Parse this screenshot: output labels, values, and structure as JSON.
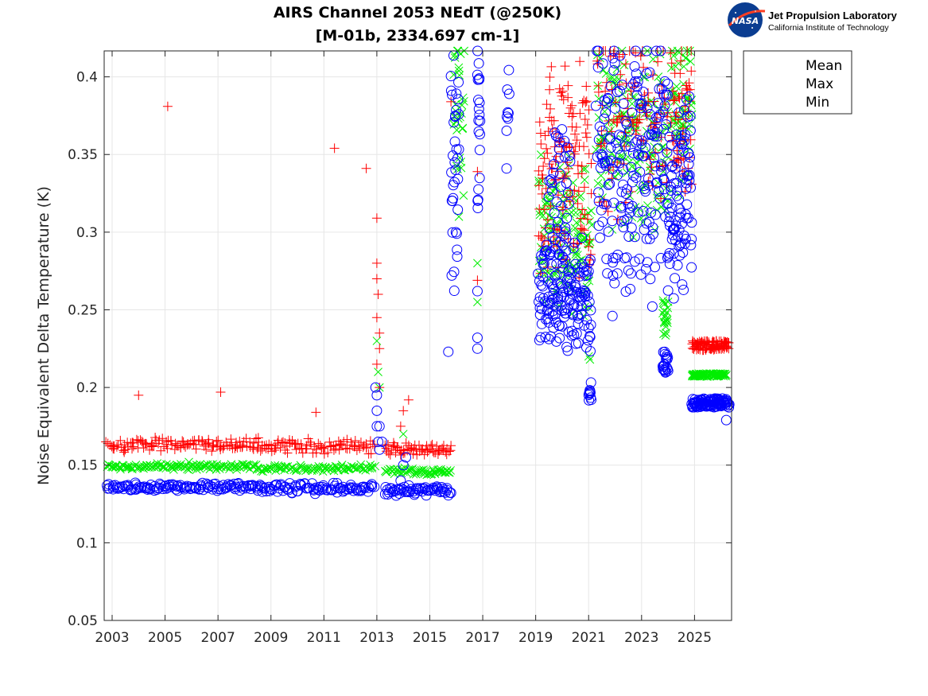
{
  "chart_data": {
    "type": "scatter",
    "title_line1": "AIRS Channel 2053 NEdT (@250K)",
    "title_line2": "[M-01b, 2334.697 cm-1]",
    "ylabel": "Noise Equivalent Delta Temperature (K)",
    "xlabel": "",
    "xlim": [
      2002.7,
      2026.4
    ],
    "ylim": [
      0.05,
      0.4167
    ],
    "xticks": [
      2003,
      2005,
      2007,
      2009,
      2011,
      2013,
      2015,
      2017,
      2019,
      2021,
      2023,
      2025
    ],
    "yticks": [
      0.05,
      0.1,
      0.15,
      0.2,
      0.25,
      0.3,
      0.35,
      0.4
    ],
    "ytick_labels": [
      "0.05",
      "0.1",
      "0.15",
      "0.2",
      "0.25",
      "0.3",
      "0.35",
      "0.4"
    ],
    "grid": true,
    "legend_position": "outside-top-right",
    "series": [
      {
        "name": "Mean",
        "marker": "x",
        "color": "#00ee00",
        "segments": [
          {
            "x": [
              2002.8,
              2008.5
            ],
            "y": [
              0.148,
              0.15
            ],
            "n": 120,
            "spread": 0.0015
          },
          {
            "x": [
              2008.5,
              2012.9
            ],
            "y": [
              0.149,
              0.147
            ],
            "n": 90,
            "spread": 0.0015
          },
          {
            "x": [
              2013.3,
              2015.8
            ],
            "y": [
              0.147,
              0.145
            ],
            "n": 60,
            "spread": 0.0015
          },
          {
            "x": [
              2015.9,
              2016.3
            ],
            "y": [
              0.35,
              0.41
            ],
            "n": 30,
            "spread": 0.03
          },
          {
            "x": [
              2019.1,
              2021.1
            ],
            "y": [
              0.27,
              0.33
            ],
            "n": 130,
            "spread": 0.03
          },
          {
            "x": [
              2021.3,
              2024.0
            ],
            "y": [
              0.33,
              0.39
            ],
            "n": 150,
            "spread": 0.04
          },
          {
            "x": [
              2023.8,
              2024.0
            ],
            "y": [
              0.24,
              0.25
            ],
            "n": 20,
            "spread": 0.01
          },
          {
            "x": [
              2024.1,
              2024.9
            ],
            "y": [
              0.35,
              0.41
            ],
            "n": 60,
            "spread": 0.03
          },
          {
            "x": [
              2024.9,
              2026.2
            ],
            "y": [
              0.208,
              0.208
            ],
            "n": 80,
            "spread": 0.001
          }
        ],
        "points": [
          [
            2013.0,
            0.23
          ],
          [
            2013.05,
            0.21
          ],
          [
            2013.1,
            0.2
          ],
          [
            2014.0,
            0.17
          ],
          [
            2016.8,
            0.28
          ],
          [
            2016.8,
            0.255
          ],
          [
            2016.1,
            0.31
          ],
          [
            2005.9,
            0.152
          ],
          [
            2021.0,
            0.22
          ],
          [
            2021.05,
            0.218
          ]
        ]
      },
      {
        "name": "Max",
        "marker": "+",
        "color": "#ff0000",
        "segments": [
          {
            "x": [
              2002.8,
              2008.5
            ],
            "y": [
              0.161,
              0.165
            ],
            "n": 120,
            "spread": 0.003
          },
          {
            "x": [
              2008.5,
              2012.9
            ],
            "y": [
              0.165,
              0.16
            ],
            "n": 90,
            "spread": 0.003
          },
          {
            "x": [
              2013.3,
              2015.8
            ],
            "y": [
              0.162,
              0.158
            ],
            "n": 60,
            "spread": 0.003
          },
          {
            "x": [
              2019.1,
              2021.1
            ],
            "y": [
              0.3,
              0.38
            ],
            "n": 140,
            "spread": 0.04
          },
          {
            "x": [
              2021.3,
              2024.0
            ],
            "y": [
              0.34,
              0.41
            ],
            "n": 110,
            "spread": 0.04
          },
          {
            "x": [
              2024.1,
              2024.9
            ],
            "y": [
              0.35,
              0.41
            ],
            "n": 50,
            "spread": 0.03
          },
          {
            "x": [
              2024.9,
              2026.3
            ],
            "y": [
              0.227,
              0.227
            ],
            "n": 90,
            "spread": 0.003
          }
        ],
        "points": [
          [
            2005.1,
            0.381
          ],
          [
            2004.0,
            0.195
          ],
          [
            2007.1,
            0.197
          ],
          [
            2010.7,
            0.184
          ],
          [
            2011.4,
            0.354
          ],
          [
            2012.6,
            0.341
          ],
          [
            2013.0,
            0.309
          ],
          [
            2013.0,
            0.28
          ],
          [
            2013.0,
            0.27
          ],
          [
            2013.05,
            0.26
          ],
          [
            2013.0,
            0.245
          ],
          [
            2013.1,
            0.235
          ],
          [
            2013.1,
            0.225
          ],
          [
            2013.0,
            0.215
          ],
          [
            2013.1,
            0.2
          ],
          [
            2014.2,
            0.192
          ],
          [
            2014.0,
            0.185
          ],
          [
            2013.9,
            0.175
          ],
          [
            2016.8,
            0.339
          ],
          [
            2016.8,
            0.269
          ],
          [
            2015.8,
            0.384
          ]
        ]
      },
      {
        "name": "Min",
        "marker": "o",
        "color": "#0000ff",
        "segments": [
          {
            "x": [
              2002.8,
              2008.5
            ],
            "y": [
              0.135,
              0.137
            ],
            "n": 120,
            "spread": 0.002
          },
          {
            "x": [
              2008.5,
              2012.9
            ],
            "y": [
              0.137,
              0.133
            ],
            "n": 90,
            "spread": 0.002
          },
          {
            "x": [
              2013.3,
              2015.8
            ],
            "y": [
              0.135,
              0.132
            ],
            "n": 60,
            "spread": 0.002
          },
          {
            "x": [
              2015.8,
              2016.1
            ],
            "y": [
              0.28,
              0.41
            ],
            "n": 35,
            "spread": 0.04
          },
          {
            "x": [
              2016.8,
              2016.9
            ],
            "y": [
              0.33,
              0.41
            ],
            "n": 20,
            "spread": 0.03
          },
          {
            "x": [
              2017.9,
              2018.0
            ],
            "y": [
              0.36,
              0.4
            ],
            "n": 8,
            "spread": 0.02
          },
          {
            "x": [
              2019.1,
              2021.1
            ],
            "y": [
              0.24,
              0.28
            ],
            "n": 160,
            "spread": 0.025
          },
          {
            "x": [
              2019.5,
              2020.3
            ],
            "y": [
              0.3,
              0.34
            ],
            "n": 40,
            "spread": 0.03
          },
          {
            "x": [
              2021.0,
              2021.1
            ],
            "y": [
              0.19,
              0.2
            ],
            "n": 10,
            "spread": 0.005
          },
          {
            "x": [
              2021.3,
              2024.0
            ],
            "y": [
              0.3,
              0.39
            ],
            "n": 200,
            "spread": 0.05
          },
          {
            "x": [
              2023.8,
              2024.0
            ],
            "y": [
              0.21,
              0.22
            ],
            "n": 20,
            "spread": 0.006
          },
          {
            "x": [
              2024.0,
              2024.9
            ],
            "y": [
              0.29,
              0.36
            ],
            "n": 90,
            "spread": 0.04
          },
          {
            "x": [
              2024.9,
              2026.3
            ],
            "y": [
              0.19,
              0.19
            ],
            "n": 100,
            "spread": 0.003
          }
        ],
        "points": [
          [
            2012.95,
            0.2
          ],
          [
            2013.0,
            0.195
          ],
          [
            2013.0,
            0.185
          ],
          [
            2013.0,
            0.175
          ],
          [
            2013.05,
            0.165
          ],
          [
            2013.1,
            0.16
          ],
          [
            2013.2,
            0.165
          ],
          [
            2013.1,
            0.175
          ],
          [
            2014.0,
            0.15
          ],
          [
            2013.9,
            0.14
          ],
          [
            2015.7,
            0.223
          ],
          [
            2016.8,
            0.262
          ],
          [
            2016.8,
            0.232
          ],
          [
            2016.8,
            0.225
          ],
          [
            2017.9,
            0.341
          ],
          [
            2021.9,
            0.246
          ],
          [
            2026.2,
            0.179
          ],
          [
            2014.1,
            0.155
          ]
        ]
      }
    ]
  },
  "legend": {
    "items": [
      {
        "label": "Mean",
        "marker": "x",
        "color": "#00ee00"
      },
      {
        "label": "Max",
        "marker": "+",
        "color": "#ff0000"
      },
      {
        "label": "Min",
        "marker": "o",
        "color": "#0000ff"
      }
    ]
  },
  "logo": {
    "badge_text": "NASA",
    "line1": "Jet Propulsion Laboratory",
    "line2": "California Institute of Technology"
  }
}
